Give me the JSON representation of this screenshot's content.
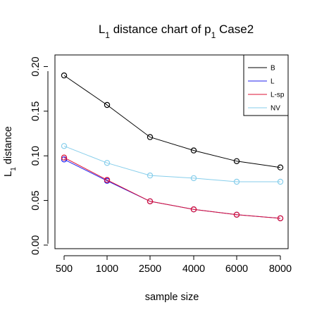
{
  "chart_data": {
    "type": "line",
    "title": {
      "main": "L",
      "sub1": "1",
      "mid": " distance chart of p",
      "sub2": "1",
      "end": " Case2"
    },
    "xlabel": "sample size",
    "ylabel": {
      "main": "L",
      "sub": "1",
      "end": " distance"
    },
    "categories": [
      "500",
      "1000",
      "2500",
      "4000",
      "6000",
      "8000"
    ],
    "y_ticks": [
      "0.00",
      "0.05",
      "0.10",
      "0.15",
      "0.20"
    ],
    "y_tick_values": [
      0.0,
      0.05,
      0.1,
      0.15,
      0.2
    ],
    "ylim": [
      -0.004,
      0.213
    ],
    "legend_position": "top-right",
    "series": [
      {
        "name": "B",
        "color": "#000000",
        "values": [
          0.19,
          0.157,
          0.121,
          0.106,
          0.094,
          0.087
        ]
      },
      {
        "name": "L",
        "color": "#2222ee",
        "values": [
          0.096,
          0.072,
          0.049,
          0.04,
          0.034,
          0.03
        ]
      },
      {
        "name": "L-sp",
        "color": "#dd1133",
        "values": [
          0.098,
          0.073,
          0.049,
          0.04,
          0.034,
          0.03
        ]
      },
      {
        "name": "NV",
        "color": "#87ceeb",
        "values": [
          0.111,
          0.092,
          0.078,
          0.075,
          0.071,
          0.071
        ]
      }
    ]
  }
}
